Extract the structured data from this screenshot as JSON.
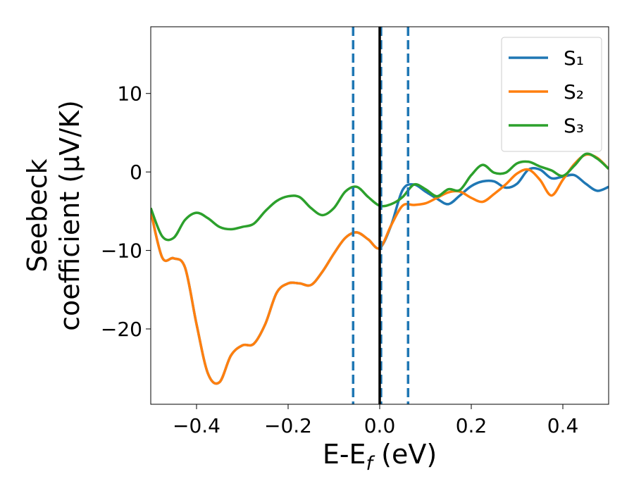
{
  "chart_data": {
    "type": "line",
    "xlabel": [
      "E-E",
      "f",
      " (eV)"
    ],
    "ylabel": [
      "Seebeck",
      "coefficient  (μV/K)"
    ],
    "x": [
      -0.5,
      -0.475,
      -0.45,
      -0.425,
      -0.4,
      -0.375,
      -0.35,
      -0.325,
      -0.3,
      -0.275,
      -0.25,
      -0.225,
      -0.2,
      -0.175,
      -0.15,
      -0.125,
      -0.1,
      -0.075,
      -0.05,
      -0.025,
      0,
      0.025,
      0.05,
      0.075,
      0.1,
      0.125,
      0.15,
      0.175,
      0.2,
      0.225,
      0.25,
      0.275,
      0.3,
      0.325,
      0.35,
      0.375,
      0.4,
      0.425,
      0.45,
      0.475,
      0.5
    ],
    "series": [
      {
        "name": "S₁",
        "color": "#1f77b4",
        "values": [
          -5.0,
          -10.9,
          -11.0,
          -12.2,
          -19.4,
          -25.7,
          -26.8,
          -23.4,
          -22.1,
          -21.9,
          -19.4,
          -15.4,
          -14.2,
          -14.2,
          -14.4,
          -12.7,
          -10.4,
          -8.4,
          -7.7,
          -8.6,
          -9.7,
          -6.8,
          -2.3,
          -1.6,
          -2.5,
          -3.4,
          -4.1,
          -3.0,
          -1.8,
          -1.2,
          -1.2,
          -2.0,
          -1.5,
          0.3,
          0.3,
          -0.8,
          -0.6,
          -0.4,
          -1.5,
          -2.4,
          -1.9
        ]
      },
      {
        "name": "S₂",
        "color": "#ff7f0e",
        "values": [
          -5.0,
          -10.9,
          -11.0,
          -12.2,
          -19.4,
          -25.7,
          -26.8,
          -23.4,
          -22.1,
          -21.9,
          -19.4,
          -15.4,
          -14.2,
          -14.2,
          -14.4,
          -12.7,
          -10.4,
          -8.4,
          -7.7,
          -8.6,
          -9.7,
          -6.8,
          -4.3,
          -4.2,
          -4.0,
          -3.3,
          -2.6,
          -2.5,
          -3.3,
          -3.8,
          -2.8,
          -1.6,
          -0.2,
          0.3,
          -1.0,
          -3.0,
          -1.0,
          1.0,
          2.2,
          1.8,
          0.4
        ]
      },
      {
        "name": "S₃",
        "color": "#2ca02c",
        "values": [
          -4.6,
          -8.2,
          -8.4,
          -6.1,
          -5.2,
          -5.9,
          -7.0,
          -7.3,
          -7.0,
          -6.6,
          -5.0,
          -3.7,
          -3.1,
          -3.2,
          -4.6,
          -5.5,
          -4.6,
          -2.5,
          -1.9,
          -3.2,
          -4.3,
          -4.1,
          -3.2,
          -1.6,
          -2.2,
          -3.1,
          -2.2,
          -2.3,
          -0.4,
          0.9,
          -0.1,
          -0.1,
          1.1,
          1.3,
          0.7,
          0.2,
          -0.5,
          0.8,
          2.3,
          1.7,
          0.4
        ]
      }
    ],
    "vlines": [
      {
        "x": -0.058,
        "color": "#1f77b4",
        "style": "dashed"
      },
      {
        "x": 0.003,
        "color": "#1f77b4",
        "style": "dashed"
      },
      {
        "x": 0.062,
        "color": "#1f77b4",
        "style": "dashed"
      },
      {
        "x": 0,
        "color": "#000000",
        "style": "solid"
      }
    ],
    "xlim": [
      -0.5,
      0.5
    ],
    "ylim": [
      -29.6,
      18.5
    ],
    "xticks": [
      {
        "value": -0.4,
        "label": "−0.4"
      },
      {
        "value": -0.2,
        "label": "−0.2"
      },
      {
        "value": 0.0,
        "label": "0.0"
      },
      {
        "value": 0.2,
        "label": "0.2"
      },
      {
        "value": 0.4,
        "label": "0.4"
      }
    ],
    "yticks": [
      {
        "value": -20,
        "label": "−20"
      },
      {
        "value": -10,
        "label": "−10"
      },
      0,
      10
    ],
    "legend": "upper right",
    "grid": false
  }
}
